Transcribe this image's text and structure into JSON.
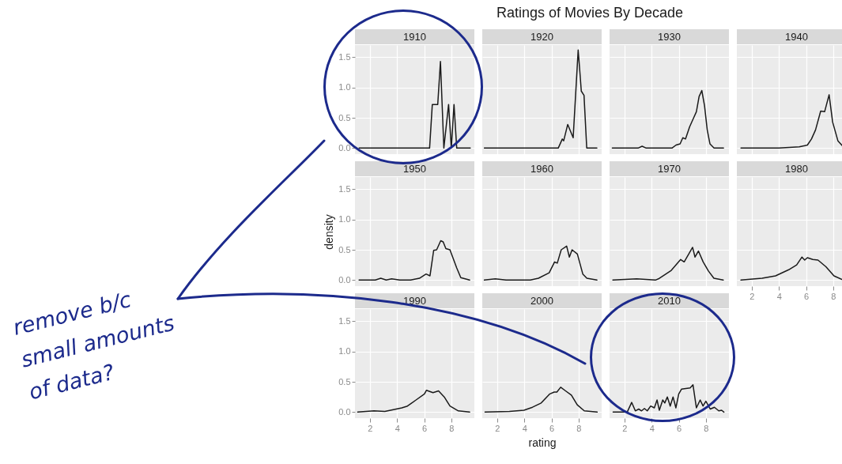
{
  "chart_data": [
    {
      "type": "other",
      "title": "Ratings of Movies By Decade",
      "annotations": [
        "remove b/c small amounts of data?"
      ]
    },
    {
      "type": "line",
      "title": "1910",
      "tick_labels": "y",
      "grid": true,
      "xlim": [
        0.9,
        9.7
      ],
      "ylim": [
        -0.1,
        1.7
      ],
      "xticks": [
        2,
        4,
        6,
        8
      ],
      "yticks": [
        {
          "value": 0,
          "label": "0.0"
        },
        {
          "value": 0.5,
          "label": "0.5"
        },
        {
          "value": 1,
          "label": "1.0"
        },
        {
          "value": 1.5,
          "label": "1.5"
        }
      ],
      "color": "#1a1a1a",
      "x": [
        1.2,
        6.4,
        6.6,
        7.0,
        7.2,
        7.45,
        7.8,
        8.0,
        8.2,
        8.4,
        9.4
      ],
      "values": [
        0,
        0,
        0.72,
        0.72,
        1.43,
        0,
        0.72,
        0,
        0.72,
        0,
        0
      ]
    },
    {
      "type": "line",
      "title": "1920",
      "tick_labels": false,
      "grid": true,
      "xlim": [
        0.9,
        9.7
      ],
      "ylim": [
        -0.1,
        1.7
      ],
      "xticks": [
        2,
        4,
        6,
        8
      ],
      "yticks": [
        0,
        0.5,
        1,
        1.5
      ],
      "color": "#1a1a1a",
      "x": [
        1.05,
        6.5,
        6.8,
        6.9,
        7.2,
        7.6,
        7.97,
        8.2,
        8.4,
        8.6,
        9.35
      ],
      "values": [
        0,
        0,
        0.15,
        0.12,
        0.39,
        0.17,
        1.62,
        0.94,
        0.87,
        0,
        0
      ]
    },
    {
      "type": "line",
      "title": "1930",
      "tick_labels": false,
      "grid": true,
      "xlim": [
        0.9,
        9.7
      ],
      "ylim": [
        -0.1,
        1.7
      ],
      "xticks": [
        2,
        4,
        6,
        8
      ],
      "yticks": [
        0,
        0.5,
        1,
        1.5
      ],
      "color": "#1a1a1a",
      "x": [
        1.1,
        3.0,
        3.3,
        3.6,
        5.5,
        5.8,
        6.1,
        6.3,
        6.5,
        6.8,
        7.1,
        7.3,
        7.5,
        7.7,
        7.9,
        8.1,
        8.3,
        8.6,
        9.3
      ],
      "values": [
        0,
        0,
        0.03,
        0,
        0,
        0.05,
        0.07,
        0.17,
        0.15,
        0.35,
        0.5,
        0.6,
        0.85,
        0.95,
        0.7,
        0.3,
        0.07,
        0,
        0
      ]
    },
    {
      "type": "line",
      "title": "1940",
      "tick_labels": false,
      "grid": true,
      "xlim": [
        0.9,
        9.7
      ],
      "ylim": [
        -0.1,
        1.7
      ],
      "xticks": [
        2,
        4,
        6,
        8
      ],
      "yticks": [
        0,
        0.5,
        1,
        1.5
      ],
      "color": "#1a1a1a",
      "x": [
        1.2,
        4.0,
        5.5,
        6.1,
        6.4,
        6.7,
        7.08,
        7.37,
        7.7,
        7.96,
        8.35,
        8.75
      ],
      "values": [
        0,
        0,
        0.02,
        0.05,
        0.15,
        0.3,
        0.61,
        0.6,
        0.88,
        0.43,
        0.12,
        0.02
      ]
    },
    {
      "type": "line",
      "title": "1950",
      "ylabel": "density",
      "tick_labels": "y",
      "grid": true,
      "xlim": [
        0.9,
        9.7
      ],
      "ylim": [
        -0.1,
        1.7
      ],
      "xticks": [
        2,
        4,
        6,
        8
      ],
      "yticks": [
        {
          "value": 0,
          "label": "0.0"
        },
        {
          "value": 0.5,
          "label": "0.5"
        },
        {
          "value": 1,
          "label": "1.0"
        },
        {
          "value": 1.5,
          "label": "1.5"
        }
      ],
      "color": "#1a1a1a",
      "x": [
        1.2,
        2.4,
        2.8,
        3.2,
        3.6,
        4.2,
        5.0,
        5.65,
        6.14,
        6.43,
        6.7,
        6.92,
        7.22,
        7.4,
        7.6,
        7.9,
        8.4,
        8.7,
        9.35
      ],
      "values": [
        0,
        0,
        0.03,
        0,
        0.02,
        0,
        0,
        0.03,
        0.1,
        0.07,
        0.49,
        0.5,
        0.65,
        0.63,
        0.52,
        0.5,
        0.2,
        0.04,
        0
      ]
    },
    {
      "type": "line",
      "title": "1960",
      "tick_labels": false,
      "grid": true,
      "xlim": [
        0.9,
        9.7
      ],
      "ylim": [
        -0.1,
        1.7
      ],
      "xticks": [
        2,
        4,
        6,
        8
      ],
      "yticks": [
        0,
        0.5,
        1,
        1.5
      ],
      "color": "#1a1a1a",
      "x": [
        1.05,
        1.86,
        2.65,
        4.44,
        5.04,
        5.83,
        6.23,
        6.43,
        6.72,
        7.12,
        7.32,
        7.52,
        7.91,
        8.31,
        8.61,
        9.35
      ],
      "values": [
        0,
        0.02,
        0,
        0,
        0.03,
        0.12,
        0.3,
        0.28,
        0.5,
        0.56,
        0.38,
        0.5,
        0.43,
        0.1,
        0.03,
        0
      ]
    },
    {
      "type": "line",
      "title": "1970",
      "tick_labels": false,
      "grid": true,
      "xlim": [
        0.9,
        9.7
      ],
      "ylim": [
        -0.1,
        1.7
      ],
      "xticks": [
        2,
        4,
        6,
        8
      ],
      "yticks": [
        0,
        0.5,
        1,
        1.5
      ],
      "color": "#1a1a1a",
      "x": [
        1.14,
        2.9,
        4.28,
        4.5,
        5.45,
        6.14,
        6.4,
        7.02,
        7.2,
        7.45,
        7.8,
        8.19,
        8.59,
        9.28
      ],
      "values": [
        0,
        0.02,
        0,
        0.02,
        0.16,
        0.34,
        0.3,
        0.54,
        0.38,
        0.48,
        0.3,
        0.15,
        0.03,
        0
      ]
    },
    {
      "type": "line",
      "title": "1980",
      "tick_labels": "x",
      "grid": true,
      "xlim": [
        0.9,
        9.7
      ],
      "ylim": [
        -0.1,
        1.7
      ],
      "xticks": [
        2,
        4,
        6,
        8
      ],
      "yticks": [
        0,
        0.5,
        1,
        1.5
      ],
      "color": "#1a1a1a",
      "x": [
        1.2,
        2.76,
        3.75,
        4.72,
        5.31,
        5.7,
        5.9,
        6.1,
        6.5,
        6.88,
        7.47,
        8.06,
        8.65
      ],
      "values": [
        0,
        0.03,
        0.07,
        0.17,
        0.25,
        0.38,
        0.33,
        0.37,
        0.34,
        0.33,
        0.22,
        0.07,
        0.01
      ]
    },
    {
      "type": "line",
      "title": "1990",
      "grid": true,
      "xlim": [
        0.9,
        9.7
      ],
      "ylim": [
        -0.1,
        1.7
      ],
      "xticks": [
        2,
        4,
        6,
        8
      ],
      "yticks": [
        {
          "value": 0,
          "label": "0.0"
        },
        {
          "value": 0.5,
          "label": "0.5"
        },
        {
          "value": 1,
          "label": "1.0"
        },
        {
          "value": 1.5,
          "label": "1.5"
        }
      ],
      "color": "#1a1a1a",
      "x": [
        1.1,
        2.3,
        3.1,
        3.73,
        4.35,
        4.77,
        5.4,
        6.02,
        6.17,
        6.65,
        7.06,
        7.48,
        7.9,
        8.52,
        9.35
      ],
      "values": [
        0,
        0.02,
        0.01,
        0.04,
        0.07,
        0.1,
        0.2,
        0.3,
        0.36,
        0.32,
        0.35,
        0.25,
        0.1,
        0.02,
        0
      ]
    },
    {
      "type": "line",
      "title": "2000",
      "xlabel": "rating",
      "tick_labels": "x",
      "grid": true,
      "xlim": [
        0.9,
        9.7
      ],
      "ylim": [
        -0.1,
        1.7
      ],
      "xticks": [
        2,
        4,
        6,
        8
      ],
      "yticks": [
        0,
        0.5,
        1,
        1.5
      ],
      "color": "#1a1a1a",
      "x": [
        1.1,
        2.9,
        3.97,
        4.6,
        5.24,
        5.88,
        6.2,
        6.4,
        6.68,
        7.04,
        7.47,
        7.9,
        8.42,
        9.37
      ],
      "values": [
        0,
        0.01,
        0.03,
        0.08,
        0.15,
        0.3,
        0.33,
        0.33,
        0.41,
        0.35,
        0.28,
        0.12,
        0.02,
        0
      ]
    },
    {
      "type": "line",
      "title": "2010",
      "tick_labels": "x",
      "grid": true,
      "xlim": [
        0.9,
        9.7
      ],
      "ylim": [
        -0.1,
        1.7
      ],
      "xticks": [
        2,
        4,
        6,
        8
      ],
      "yticks": [
        0,
        0.5,
        1,
        1.5
      ],
      "color": "#1a1a1a",
      "x": [
        1.16,
        2.2,
        2.53,
        2.8,
        3.05,
        3.26,
        3.47,
        3.68,
        3.93,
        4.2,
        4.4,
        4.57,
        4.82,
        4.97,
        5.16,
        5.37,
        5.58,
        5.79,
        6.0,
        6.21,
        6.84,
        7.05,
        7.3,
        7.58,
        7.79,
        8.0,
        8.32,
        8.63,
        8.95,
        9.16,
        9.33
      ],
      "values": [
        0,
        0,
        0.16,
        0.02,
        0.05,
        0.02,
        0.06,
        0.02,
        0.1,
        0.07,
        0.2,
        0.03,
        0.2,
        0.15,
        0.25,
        0.1,
        0.25,
        0.07,
        0.3,
        0.38,
        0.4,
        0.45,
        0.07,
        0.2,
        0.1,
        0.18,
        0.05,
        0.08,
        0.02,
        0.03,
        0
      ]
    }
  ]
}
